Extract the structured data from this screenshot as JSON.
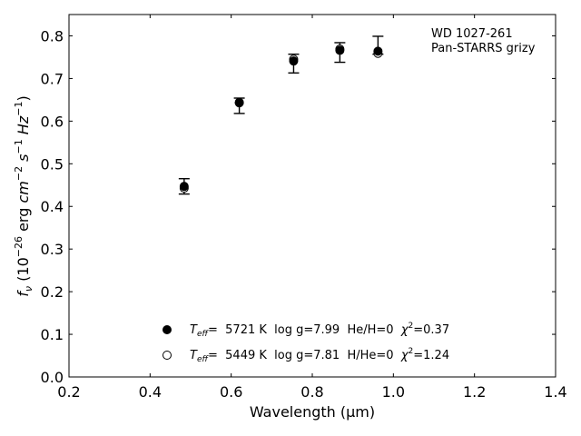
{
  "chart_data": {
    "type": "scatter",
    "xlabel": "Wavelength (μm)",
    "ylabel_parts": {
      "sym": "f",
      "sub": "ν",
      "open": " (10",
      "exp1": "−26",
      "unit1": " erg ",
      "cm": "cm",
      "exp2": "−2",
      "s": " s",
      "exp3": "−1",
      "hz": " Hz",
      "exp4": "−1",
      "close": ")"
    },
    "xlim": [
      0.2,
      1.4
    ],
    "ylim": [
      0.0,
      0.85
    ],
    "xticks": [
      "0.2",
      "0.4",
      "0.6",
      "0.8",
      "1.0",
      "1.2",
      "1.4"
    ],
    "yticks": [
      "0.0",
      "0.1",
      "0.2",
      "0.3",
      "0.4",
      "0.5",
      "0.6",
      "0.7",
      "0.8"
    ],
    "annotations": [
      "WD 1027-261",
      "Pan-STARRS grizy"
    ],
    "observed": {
      "x": [
        0.484,
        0.62,
        0.754,
        0.868,
        0.962
      ],
      "y": [
        0.447,
        0.636,
        0.735,
        0.761,
        0.778
      ],
      "yerr": [
        0.018,
        0.018,
        0.022,
        0.023,
        0.021
      ]
    },
    "series": [
      {
        "marker": "filled",
        "label_parts": {
          "T": "T",
          "sub": "eff",
          "rest": "=  5721 K  log g=7.99  He/H=0  ",
          "chi": "χ",
          "sup": "2",
          "end": "=0.37"
        },
        "x": [
          0.484,
          0.62,
          0.754,
          0.868,
          0.962
        ],
        "y": [
          0.447,
          0.644,
          0.741,
          0.766,
          0.764
        ]
      },
      {
        "marker": "open",
        "label_parts": {
          "T": "T",
          "sub": "eff",
          "rest": "=  5449 K  log g=7.81  H/He=0  ",
          "chi": "χ",
          "sup": "2",
          "end": "=1.24"
        },
        "x": [
          0.484,
          0.62,
          0.754,
          0.868,
          0.962
        ],
        "y": [
          0.443,
          0.643,
          0.745,
          0.769,
          0.759
        ]
      }
    ]
  }
}
